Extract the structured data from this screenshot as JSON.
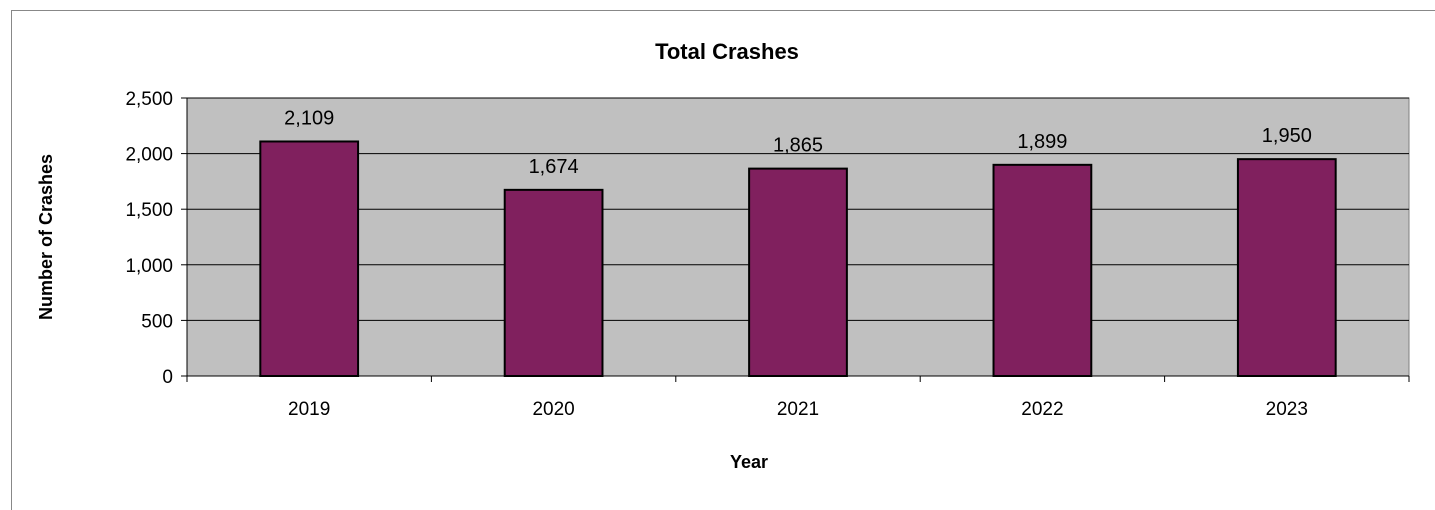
{
  "chart_data": {
    "type": "bar",
    "title": "Total Crashes",
    "xlabel": "Year",
    "ylabel": "Number of Crashes",
    "categories": [
      "2019",
      "2020",
      "2021",
      "2022",
      "2023"
    ],
    "values": [
      2109,
      1674,
      1865,
      1899,
      1950
    ],
    "data_labels": [
      "2,109",
      "1,674",
      "1,865",
      "1,899",
      "1,950"
    ],
    "ylim": [
      0,
      2500
    ],
    "yticks": [
      0,
      500,
      1000,
      1500,
      2000,
      2500
    ],
    "ytick_labels": [
      "0",
      "500",
      "1,000",
      "1,500",
      "2,000",
      "2,500"
    ],
    "grid": true,
    "legend": false,
    "colors": {
      "bar_fill": "#80205e",
      "plot_background": "#c0c0c0",
      "gridline": "#000000"
    }
  }
}
